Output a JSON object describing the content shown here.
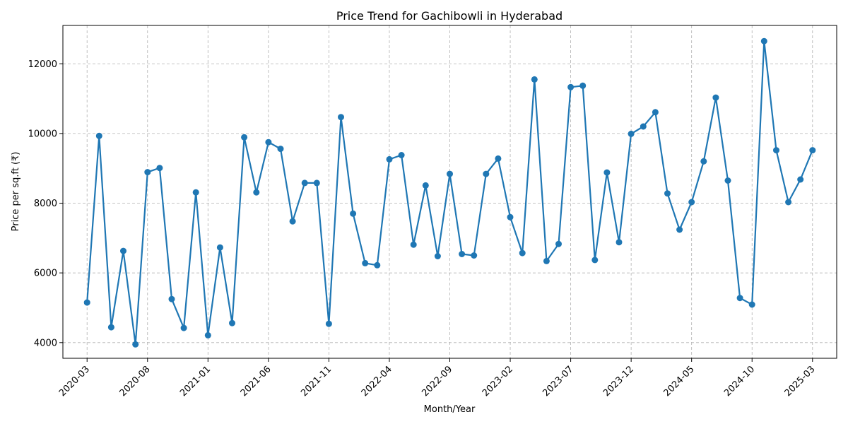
{
  "chart_data": {
    "type": "line",
    "title": "Price Trend for Gachibowli in Hyderabad",
    "xlabel": "Month/Year",
    "ylabel": "Price per sq.ft (₹)",
    "x_tick_labels": [
      "2020-03",
      "2020-08",
      "2021-01",
      "2021-06",
      "2021-11",
      "2022-04",
      "2022-09",
      "2023-02",
      "2023-07",
      "2023-12",
      "2024-05",
      "2024-10",
      "2025-03"
    ],
    "y_ticks": [
      4000,
      6000,
      8000,
      10000,
      12000
    ],
    "ylim": [
      3550,
      13100
    ],
    "xlim": [
      "2020-01",
      "2025-05"
    ],
    "grid": true,
    "line_color": "#1f77b4",
    "x": [
      "2020-03",
      "2020-04",
      "2020-05",
      "2020-06",
      "2020-07",
      "2020-08",
      "2020-09",
      "2020-10",
      "2020-11",
      "2020-12",
      "2021-01",
      "2021-02",
      "2021-03",
      "2021-04",
      "2021-05",
      "2021-06",
      "2021-07",
      "2021-08",
      "2021-09",
      "2021-10",
      "2021-11",
      "2021-12",
      "2022-01",
      "2022-02",
      "2022-03",
      "2022-04",
      "2022-05",
      "2022-06",
      "2022-07",
      "2022-08",
      "2022-09",
      "2022-10",
      "2022-11",
      "2022-12",
      "2023-01",
      "2023-02",
      "2023-03",
      "2023-04",
      "2023-05",
      "2023-06",
      "2023-07",
      "2023-08",
      "2023-09",
      "2023-10",
      "2023-11",
      "2023-12",
      "2024-01",
      "2024-02",
      "2024-03",
      "2024-04",
      "2024-05",
      "2024-06",
      "2024-07",
      "2024-08",
      "2024-09",
      "2024-10",
      "2024-11",
      "2024-12",
      "2025-01",
      "2025-02",
      "2025-03"
    ],
    "series": [
      {
        "values": [
          5150,
          9930,
          4440,
          6630,
          3950,
          8890,
          9010,
          5250,
          4420,
          8310,
          4210,
          6730,
          4560,
          9890,
          8310,
          9750,
          9560,
          7480,
          8580,
          8580,
          4540,
          10470,
          7700,
          6280,
          6220,
          9260,
          9380,
          6810,
          8510,
          6480,
          8840,
          6540,
          6500,
          8840,
          9280,
          7600,
          6570,
          11550,
          6340,
          6830,
          11330,
          11370,
          6370,
          8880,
          6880,
          9990,
          10200,
          10610,
          8280,
          7240,
          8030,
          9200,
          11030,
          8650,
          5280,
          5090,
          12650,
          9520,
          8030,
          8680,
          9520
        ]
      }
    ]
  }
}
